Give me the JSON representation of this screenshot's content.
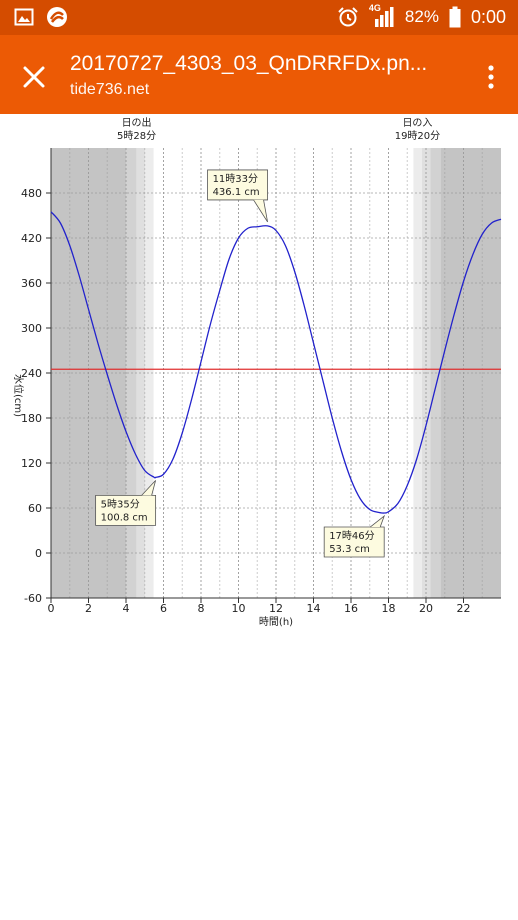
{
  "status_bar": {
    "battery": "82%",
    "time": "0:00",
    "network": "4G",
    "icons": [
      "image-icon",
      "app-icon",
      "alarm-icon",
      "signal-icon",
      "battery-icon"
    ]
  },
  "toolbar": {
    "title": "20170727_4303_03_QnDRRFDx.pn...",
    "subtitle": "tide736.net",
    "close_icon": "close-icon",
    "menu_icon": "more-vert-icon",
    "color": "#ec5a05"
  },
  "chart_data": {
    "type": "line",
    "xlabel": "時間(h)",
    "ylabel": "水位(cm)",
    "xlim": [
      0,
      24
    ],
    "ylim": [
      -60,
      540
    ],
    "x_ticks": [
      "0",
      "2",
      "4",
      "6",
      "8",
      "10",
      "12",
      "14",
      "16",
      "18",
      "20",
      "22"
    ],
    "y_ticks": [
      "-60",
      "0",
      "60",
      "120",
      "180",
      "240",
      "300",
      "360",
      "420",
      "480"
    ],
    "reference_line": 245,
    "line_color": "#2222cc",
    "ref_color": "#e03030",
    "sunrise": {
      "label": "日の出",
      "time": "5時28分",
      "hour": 5.47
    },
    "sunset": {
      "label": "日の入",
      "time": "19時20分",
      "hour": 19.33
    },
    "series": [
      {
        "x": [
          0,
          0.5,
          1,
          1.5,
          2,
          2.5,
          3,
          3.5,
          4,
          4.5,
          5,
          5.5,
          5.58,
          6,
          6.5,
          7,
          7.5,
          8,
          8.5,
          9,
          9.5,
          10,
          10.5,
          11,
          11.55,
          12,
          12.5,
          13,
          13.5,
          14,
          14.5,
          15,
          15.5,
          16,
          16.5,
          17,
          17.5,
          17.77,
          18,
          18.5,
          19,
          19.5,
          20,
          20.5,
          21,
          21.5,
          22,
          22.5,
          23,
          23.5,
          24
        ],
        "values": [
          455,
          440,
          410,
          370,
          325,
          280,
          238,
          198,
          162,
          132,
          110,
          101,
          100.8,
          105,
          125,
          160,
          205,
          255,
          305,
          350,
          392,
          420,
          433,
          435,
          436.1,
          430,
          410,
          375,
          330,
          280,
          230,
          180,
          135,
          98,
          72,
          58,
          54,
          53.3,
          55,
          66,
          90,
          125,
          170,
          220,
          270,
          318,
          362,
          398,
          425,
          440,
          445
        ]
      }
    ],
    "annotations": [
      {
        "time": "5時35分",
        "value": "100.8 cm",
        "x": 5.58,
        "y": 100.8
      },
      {
        "time": "11時33分",
        "value": "436.1 cm",
        "x": 11.55,
        "y": 436.1
      },
      {
        "time": "17時46分",
        "value": "53.3 cm",
        "x": 17.77,
        "y": 53.3
      }
    ]
  }
}
